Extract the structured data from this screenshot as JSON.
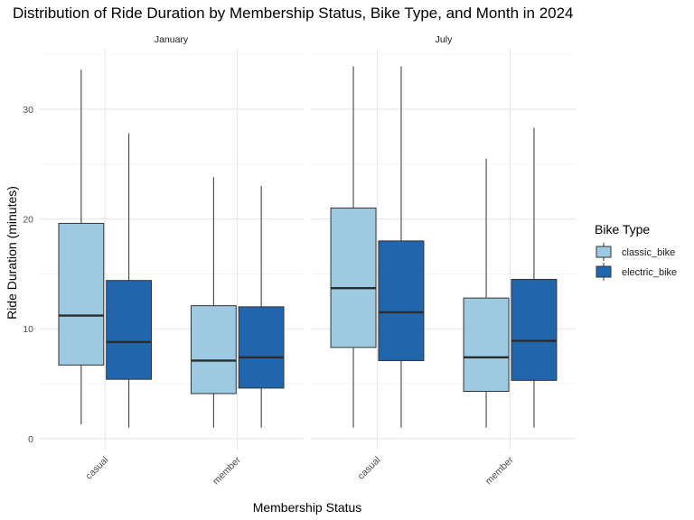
{
  "chart_data": {
    "type": "boxplot",
    "title": "Distribution of Ride Duration by Membership Status, Bike Type, and Month in 2024",
    "xlabel": "Membership Status",
    "ylabel": "Ride Duration (minutes)",
    "ylim": [
      -1,
      35.5
    ],
    "y_ticks": [
      0,
      10,
      20,
      30
    ],
    "y_tick_labels": [
      "0",
      "10",
      "20",
      "30"
    ],
    "categories": [
      "casual",
      "member"
    ],
    "legend": {
      "title": "Bike Type",
      "placement": "right",
      "entries": [
        {
          "name": "classic_bike",
          "color": "#9ecae1"
        },
        {
          "name": "electric_bike",
          "color": "#2166ac"
        }
      ]
    },
    "facets": [
      {
        "name": "January",
        "boxes": [
          {
            "category": "casual",
            "bike": "classic_bike",
            "min": 1.3,
            "q1": 6.7,
            "median": 11.2,
            "q3": 19.6,
            "max": 33.6
          },
          {
            "category": "casual",
            "bike": "electric_bike",
            "min": 1.0,
            "q1": 5.4,
            "median": 8.8,
            "q3": 14.4,
            "max": 27.8
          },
          {
            "category": "member",
            "bike": "classic_bike",
            "min": 1.0,
            "q1": 4.1,
            "median": 7.1,
            "q3": 12.1,
            "max": 23.8
          },
          {
            "category": "member",
            "bike": "electric_bike",
            "min": 1.0,
            "q1": 4.6,
            "median": 7.4,
            "q3": 12.0,
            "max": 23.0
          }
        ]
      },
      {
        "name": "July",
        "boxes": [
          {
            "category": "casual",
            "bike": "classic_bike",
            "min": 1.0,
            "q1": 8.3,
            "median": 13.7,
            "q3": 21.0,
            "max": 33.9
          },
          {
            "category": "casual",
            "bike": "electric_bike",
            "min": 1.0,
            "q1": 7.1,
            "median": 11.5,
            "q3": 18.0,
            "max": 33.9
          },
          {
            "category": "member",
            "bike": "classic_bike",
            "min": 1.0,
            "q1": 4.3,
            "median": 7.4,
            "q3": 12.8,
            "max": 25.5
          },
          {
            "category": "member",
            "bike": "electric_bike",
            "min": 1.0,
            "q1": 5.3,
            "median": 8.9,
            "q3": 14.5,
            "max": 28.3
          }
        ]
      }
    ],
    "grid": true
  }
}
